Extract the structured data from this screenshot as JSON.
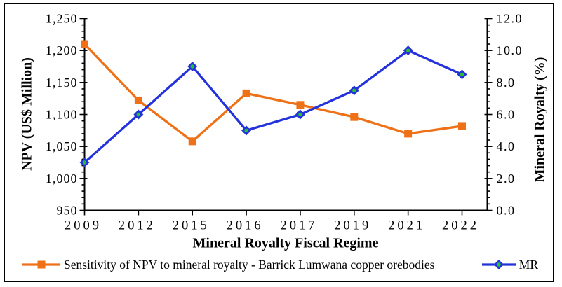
{
  "chart_data": {
    "type": "line",
    "title": "",
    "xlabel": "Mineral Royalty Fiscal Regime",
    "ylabel": "NPV (US$ Million)",
    "ylabel_right": "Mineral Royalty (%)",
    "grid": false,
    "legend_position": "bottom",
    "categories": [
      "2009",
      "2012",
      "2015",
      "2016",
      "2017",
      "2019",
      "2021",
      "2022"
    ],
    "axes": {
      "left": {
        "min": 950,
        "max": 1250,
        "major_step": 50,
        "minor_step": 10,
        "tick_labels": [
          "950",
          "1,000",
          "1,050",
          "1,100",
          "1,150",
          "1,200",
          "1,250"
        ]
      },
      "right": {
        "min": 0,
        "max": 12,
        "major_step": 2,
        "minor_step": 0.4,
        "tick_labels": [
          "0.0",
          "2.0",
          "4.0",
          "6.0",
          "8.0",
          "10.0",
          "12.0"
        ]
      }
    },
    "series": [
      {
        "name": "Sensitivity of NPV to mineral royalty - Barrick Lumwana copper orebodies",
        "axis": "left",
        "marker": "square",
        "color": "#ee7118",
        "values": [
          1210,
          1122,
          1058,
          1133,
          1115,
          1096,
          1070,
          1082
        ]
      },
      {
        "name": "MR",
        "axis": "right",
        "marker": "diamond",
        "color": "#2432db",
        "marker_dot_color": "#25c22d",
        "values": [
          3.0,
          6.0,
          9.0,
          5.0,
          6.0,
          7.5,
          10.0,
          8.5
        ]
      }
    ]
  }
}
